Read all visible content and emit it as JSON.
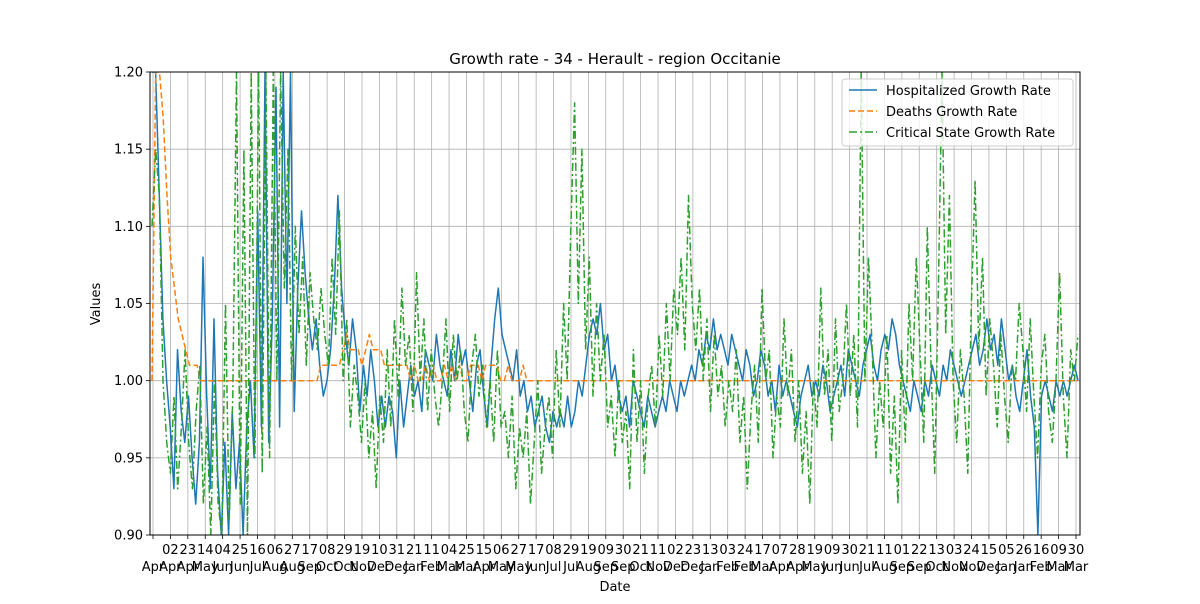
{
  "chart_data": {
    "type": "line",
    "title": "Growth rate - 34 - Herault - region Occitanie",
    "xlabel": "Date",
    "ylabel": "Values",
    "ylim": [
      0.9,
      1.2
    ],
    "y_ticks": [
      "0.90",
      "0.95",
      "1.00",
      "1.05",
      "1.10",
      "1.15",
      "1.20"
    ],
    "grid": true,
    "legend_position": "top-right",
    "x_tick_labels": [
      {
        "day": "",
        "month": "Apr"
      },
      {
        "day": "02",
        "month": "Apr"
      },
      {
        "day": "23",
        "month": "Apr"
      },
      {
        "day": "14",
        "month": "May"
      },
      {
        "day": "04",
        "month": "Jun"
      },
      {
        "day": "25",
        "month": "Jun"
      },
      {
        "day": "16",
        "month": "Jul"
      },
      {
        "day": "06",
        "month": "Aug"
      },
      {
        "day": "27",
        "month": "Aug"
      },
      {
        "day": "17",
        "month": "Sep"
      },
      {
        "day": "08",
        "month": "Oct"
      },
      {
        "day": "29",
        "month": "Oct"
      },
      {
        "day": "19",
        "month": "Nov"
      },
      {
        "day": "10",
        "month": "Dec"
      },
      {
        "day": "31",
        "month": "Dec"
      },
      {
        "day": "21",
        "month": "Jan"
      },
      {
        "day": "11",
        "month": "Feb"
      },
      {
        "day": "04",
        "month": "Mar"
      },
      {
        "day": "25",
        "month": "Mar"
      },
      {
        "day": "15",
        "month": "Apr"
      },
      {
        "day": "06",
        "month": "May"
      },
      {
        "day": "27",
        "month": "May"
      },
      {
        "day": "17",
        "month": "Jun"
      },
      {
        "day": "08",
        "month": "Jul"
      },
      {
        "day": "29",
        "month": "Jul"
      },
      {
        "day": "19",
        "month": "Aug"
      },
      {
        "day": "09",
        "month": "Sep"
      },
      {
        "day": "30",
        "month": "Sep"
      },
      {
        "day": "21",
        "month": "Oct"
      },
      {
        "day": "11",
        "month": "Nov"
      },
      {
        "day": "02",
        "month": "Dec"
      },
      {
        "day": "23",
        "month": "Dec"
      },
      {
        "day": "13",
        "month": "Jan"
      },
      {
        "day": "03",
        "month": "Feb"
      },
      {
        "day": "24",
        "month": "Feb"
      },
      {
        "day": "17",
        "month": "Mar"
      },
      {
        "day": "07",
        "month": "Apr"
      },
      {
        "day": "28",
        "month": "Apr"
      },
      {
        "day": "19",
        "month": "May"
      },
      {
        "day": "09",
        "month": "Jun"
      },
      {
        "day": "30",
        "month": "Jun"
      },
      {
        "day": "21",
        "month": "Jul"
      },
      {
        "day": "11",
        "month": "Aug"
      },
      {
        "day": "01",
        "month": "Sep"
      },
      {
        "day": "22",
        "month": "Sep"
      },
      {
        "day": "13",
        "month": "Oct"
      },
      {
        "day": "03",
        "month": "Nov"
      },
      {
        "day": "24",
        "month": "Nov"
      },
      {
        "day": "15",
        "month": "Dec"
      },
      {
        "day": "05",
        "month": "Jan"
      },
      {
        "day": "26",
        "month": "Jan"
      },
      {
        "day": "16",
        "month": "Feb"
      },
      {
        "day": "09",
        "month": "Mar"
      },
      {
        "day": "30",
        "month": "Mar"
      }
    ],
    "series": [
      {
        "name": "Hospitalized Growth Rate",
        "color": "#1f77b4",
        "style": "solid",
        "values": [
          1.2,
          1.2,
          1.12,
          1.04,
          1.0,
          0.97,
          0.93,
          1.02,
          0.98,
          0.96,
          0.99,
          0.95,
          0.92,
          0.96,
          1.08,
          0.99,
          0.93,
          1.04,
          0.94,
          0.9,
          0.96,
          0.9,
          0.98,
          0.93,
          0.96,
          0.9,
          0.97,
          1.0,
          0.95,
          1.11,
          0.97,
          1.2,
          0.96,
          1.04,
          1.19,
          0.97,
          1.2,
          1.05,
          1.2,
          0.98,
          1.06,
          1.11,
          1.07,
          1.04,
          1.02,
          1.04,
          1.01,
          0.99,
          1.0,
          1.02,
          1.06,
          1.12,
          1.06,
          1.03,
          1.01,
          1.04,
          1.02,
          0.98,
          1.01,
          0.99,
          1.02,
          1.0,
          0.97,
          0.99,
          0.97,
          0.99,
          0.98,
          0.95,
          1.0,
          0.97,
          0.99,
          1.01,
          0.99,
          1.0,
          0.98,
          1.02,
          1.01,
          1.0,
          1.03,
          1.01,
          1.0,
          0.99,
          1.02,
          1.0,
          1.03,
          1.01,
          1.02,
          1.0,
          0.98,
          1.01,
          1.02,
          0.99,
          0.97,
          1.01,
          1.04,
          1.06,
          1.03,
          1.02,
          1.01,
          1.0,
          1.02,
          0.99,
          1.0,
          0.98,
          0.99,
          0.97,
          0.98,
          0.99,
          0.97,
          0.96,
          0.98,
          0.97,
          0.98,
          0.97,
          0.99,
          0.97,
          0.98,
          1.0,
          0.99,
          1.01,
          1.03,
          1.04,
          1.03,
          1.05,
          1.02,
          1.03,
          1.0,
          1.01,
          0.99,
          0.98,
          0.99,
          0.97,
          1.0,
          0.99,
          0.98,
          0.97,
          0.99,
          0.98,
          0.97,
          0.98,
          0.99,
          0.98,
          1.0,
          0.99,
          0.98,
          1.0,
          0.99,
          1.0,
          1.01,
          1.0,
          1.02,
          1.01,
          1.03,
          1.02,
          1.04,
          1.02,
          1.03,
          1.02,
          1.01,
          1.03,
          1.02,
          1.01,
          1.0,
          1.02,
          1.01,
          0.99,
          1.0,
          1.02,
          1.01,
          0.99,
          1.0,
          0.98,
          1.01,
          0.99,
          1.0,
          0.99,
          0.98,
          0.97,
          0.99,
          1.0,
          1.01,
          0.99,
          1.0,
          0.99,
          1.01,
          1.0,
          0.98,
          0.99,
          1.0,
          1.01,
          0.99,
          1.02,
          1.01,
          1.0,
          0.99,
          1.01,
          1.02,
          1.03,
          1.01,
          1.0,
          1.02,
          1.03,
          1.02,
          1.04,
          1.03,
          1.01,
          1.0,
          0.99,
          0.98,
          1.0,
          0.99,
          0.98,
          1.0,
          0.99,
          1.01,
          1.0,
          0.99,
          1.01,
          1.0,
          1.02,
          1.01,
          1.0,
          0.99,
          1.0,
          1.01,
          1.02,
          1.03,
          1.01,
          1.02,
          1.04,
          1.02,
          1.03,
          1.01,
          1.04,
          1.02,
          1.0,
          1.01,
          0.99,
          0.98,
          1.0,
          1.02,
          0.99,
          0.97,
          0.9,
          0.99,
          1.0,
          0.99,
          0.98,
          1.0,
          0.99,
          1.0,
          0.99,
          1.0,
          1.01,
          1.0
        ]
      },
      {
        "name": "Deaths Growth Rate",
        "color": "#ff7f0e",
        "style": "dashed",
        "values": [
          1.0,
          1.2,
          1.2,
          1.17,
          1.12,
          1.08,
          1.06,
          1.04,
          1.03,
          1.02,
          1.01,
          1.01,
          1.01,
          1.0,
          1.0,
          1.0,
          1.0,
          1.0,
          1.0,
          1.0,
          1.0,
          1.0,
          1.0,
          1.0,
          1.0,
          1.0,
          1.0,
          1.0,
          1.0,
          1.0,
          1.0,
          1.0,
          1.0,
          1.0,
          1.0,
          1.0,
          1.0,
          1.0,
          1.0,
          1.0,
          1.0,
          1.0,
          1.0,
          1.0,
          1.0,
          1.01,
          1.01,
          1.01,
          1.01,
          1.01,
          1.01,
          1.02,
          1.03,
          1.02,
          1.02,
          1.02,
          1.01,
          1.02,
          1.03,
          1.02,
          1.02,
          1.02,
          1.01,
          1.01,
          1.01,
          1.01,
          1.01,
          1.01,
          1.01,
          1.0,
          1.01,
          1.0,
          1.0,
          1.01,
          1.0,
          1.01,
          1.0,
          1.0,
          1.01,
          1.0,
          1.01,
          1.0,
          1.01,
          1.0,
          1.0,
          1.01,
          1.01,
          1.01,
          1.0,
          1.01,
          1.01,
          1.01,
          1.01,
          1.0,
          1.0,
          1.01,
          1.0,
          1.0,
          1.0,
          1.01,
          1.0,
          1.0,
          1.0,
          1.0,
          1.0,
          1.0,
          1.0,
          1.0,
          1.0,
          1.0,
          1.0,
          1.0,
          1.0,
          1.0,
          1.0,
          1.0,
          1.0,
          1.0,
          1.0,
          1.0,
          1.0,
          1.0,
          1.0,
          1.0,
          1.0,
          1.0,
          1.0,
          1.0,
          1.0,
          1.0,
          1.0,
          1.0,
          1.0,
          1.0,
          1.0,
          1.0,
          1.0,
          1.0,
          1.0,
          1.0,
          1.0,
          1.0,
          1.0,
          1.0,
          1.0,
          1.0,
          1.0,
          1.0,
          1.0,
          1.0,
          1.0,
          1.0,
          1.0,
          1.0,
          1.0,
          1.0,
          1.0,
          1.0,
          1.0,
          1.0,
          1.0,
          1.0,
          1.0,
          1.0,
          1.0,
          1.0,
          1.0,
          1.0,
          1.0,
          1.0,
          1.0,
          1.0,
          1.0,
          1.0,
          1.0,
          1.0,
          1.0,
          1.0,
          1.0,
          1.0,
          1.0,
          1.0,
          1.0,
          1.0,
          1.0,
          1.0,
          1.0,
          1.0,
          1.0,
          1.0,
          1.0,
          1.0,
          1.0,
          1.0,
          1.0,
          1.0,
          1.0,
          1.0,
          1.0,
          1.0,
          1.0,
          1.0,
          1.0,
          1.0,
          1.0,
          1.0,
          1.0,
          1.0,
          1.0,
          1.0,
          1.0,
          1.0,
          1.0,
          1.0,
          1.0,
          1.0,
          1.0,
          1.0,
          1.0,
          1.0,
          1.0,
          1.0,
          1.0,
          1.0,
          1.0,
          1.0,
          1.0,
          1.0,
          1.0,
          1.0,
          1.0,
          1.0,
          1.0,
          1.0,
          1.0,
          1.0,
          1.0,
          1.0,
          1.0,
          1.0,
          1.0,
          1.0,
          1.0,
          1.0,
          1.0,
          1.0,
          1.0,
          1.0
        ]
      },
      {
        "name": "Critical State Growth Rate",
        "color": "#2ca02c",
        "style": "dashdot",
        "values": [
          1.1,
          1.15,
          1.12,
          1.0,
          0.96,
          0.94,
          0.99,
          0.93,
          0.97,
          1.02,
          0.96,
          0.93,
          0.98,
          1.01,
          0.92,
          0.97,
          0.9,
          1.0,
          0.92,
          0.9,
          1.05,
          0.91,
          0.99,
          1.2,
          0.92,
          1.15,
          0.9,
          1.2,
          0.95,
          1.2,
          0.94,
          1.2,
          0.95,
          1.2,
          1.0,
          1.2,
          1.06,
          1.15,
          1.0,
          1.1,
          1.03,
          1.08,
          1.01,
          1.07,
          1.04,
          1.02,
          1.06,
          1.03,
          1.01,
          1.08,
          1.03,
          1.11,
          1.0,
          1.04,
          0.97,
          1.01,
          0.99,
          0.96,
          1.0,
          0.95,
          0.98,
          0.93,
          0.99,
          0.96,
          1.02,
          0.97,
          1.04,
          0.99,
          1.06,
          1.01,
          1.03,
          0.98,
          1.07,
          1.0,
          1.04,
          0.98,
          1.02,
          0.99,
          0.97,
          1.0,
          1.04,
          0.98,
          1.03,
          1.0,
          1.02,
          0.98,
          0.96,
          1.01,
          1.03,
          0.99,
          1.01,
          0.97,
          1.0,
          0.96,
          1.02,
          0.97,
          0.98,
          0.95,
          0.99,
          0.93,
          0.97,
          0.95,
          0.98,
          0.92,
          0.96,
          1.0,
          0.94,
          0.97,
          0.99,
          0.95,
          1.02,
          0.97,
          1.05,
          1.0,
          1.1,
          1.18,
          1.05,
          1.15,
          1.02,
          1.08,
          0.99,
          1.05,
          1.0,
          1.03,
          0.97,
          0.99,
          0.95,
          1.0,
          0.96,
          0.98,
          0.93,
          1.02,
          0.96,
          1.0,
          0.94,
          0.99,
          1.01,
          0.97,
          1.03,
          0.99,
          1.05,
          1.0,
          1.06,
          1.03,
          1.08,
          1.02,
          1.12,
          1.05,
          1.02,
          1.06,
          1.0,
          1.04,
          0.98,
          1.03,
          0.99,
          1.01,
          0.97,
          1.0,
          0.98,
          1.02,
          0.96,
          0.99,
          0.93,
          0.98,
          1.01,
          0.96,
          1.06,
          1.0,
          1.02,
          0.95,
          0.99,
          0.97,
          1.04,
          0.99,
          1.02,
          0.96,
          1.0,
          0.94,
          0.98,
          0.92,
          1.0,
          0.97,
          1.06,
          0.99,
          1.02,
          0.96,
          1.04,
          0.98,
          1.0,
          1.05,
          0.99,
          1.03,
          0.97,
          1.2,
          1.0,
          1.08,
          1.02,
          0.95,
          1.0,
          0.97,
          1.03,
          0.94,
          0.99,
          0.92,
          1.02,
          0.96,
          1.05,
          1.0,
          1.08,
          1.02,
          0.96,
          1.1,
          1.01,
          0.94,
          1.06,
          1.2,
          1.03,
          1.12,
          1.0,
          0.96,
          1.02,
          0.99,
          0.94,
          1.05,
          1.13,
          1.02,
          1.08,
          0.99,
          1.04,
          1.01,
          0.97,
          1.03,
          0.99,
          0.96,
          1.01,
          1.0,
          1.05,
          1.02,
          0.98,
          1.04,
          0.99,
          0.95,
          1.01,
          1.03,
          0.98,
          0.96,
          1.0,
          1.07,
          0.99,
          0.95,
          1.02,
          1.0,
          1.03
        ]
      }
    ]
  }
}
